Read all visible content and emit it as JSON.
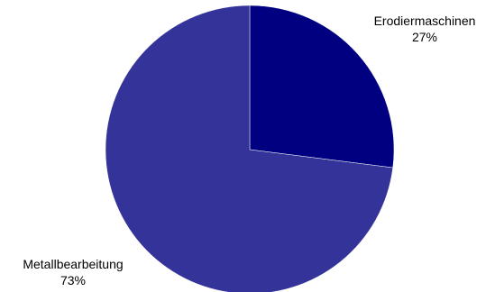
{
  "chart_data": {
    "type": "pie",
    "title": "",
    "start_angle_deg": 0,
    "direction": "clockwise",
    "slices": [
      {
        "label": "Erodiermaschinen",
        "value": 27,
        "value_label": "27%",
        "color": "#000080"
      },
      {
        "label": "Metallbearbeitung",
        "value": 73,
        "value_label": "73%",
        "color": "#333399"
      }
    ],
    "legend": "none"
  }
}
